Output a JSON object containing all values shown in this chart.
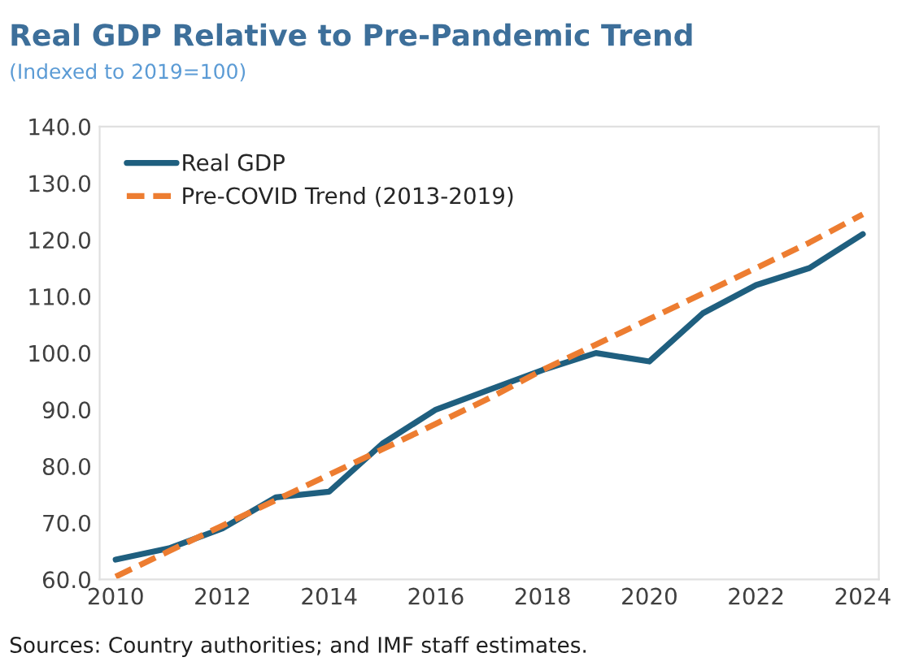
{
  "chart_data": {
    "type": "line",
    "title": "Real GDP Relative to Pre-Pandemic Trend",
    "subtitle": "(Indexed to 2019=100)",
    "x": [
      2010,
      2011,
      2012,
      2013,
      2014,
      2015,
      2016,
      2017,
      2018,
      2019,
      2020,
      2021,
      2022,
      2023,
      2024
    ],
    "series": [
      {
        "name": "Real GDP",
        "color": "#1f5f7f",
        "line_style": "solid",
        "values": [
          63.5,
          65.5,
          69,
          74.5,
          75.5,
          84,
          90,
          93.5,
          97,
          100,
          98.5,
          107,
          112,
          115,
          121
        ]
      },
      {
        "name": "Pre-COVID Trend (2013-2019)",
        "color": "#ed7d31",
        "line_style": "dashed",
        "values": [
          60.5,
          65,
          69.5,
          74,
          78.5,
          83,
          87.5,
          92,
          97,
          101.5,
          106,
          110.5,
          115,
          119.5,
          124.5
        ]
      }
    ],
    "xlim": [
      2009.7,
      2024.3
    ],
    "xticks": [
      2010,
      2012,
      2014,
      2016,
      2018,
      2020,
      2022,
      2024
    ],
    "ylim": [
      60,
      140
    ],
    "yticks": [
      {
        "value": 60,
        "label": "60.0"
      },
      {
        "value": 70,
        "label": "70.0"
      },
      {
        "value": 80,
        "label": "80.0"
      },
      {
        "value": 90,
        "label": "90.0"
      },
      {
        "value": 100,
        "label": "100.0"
      },
      {
        "value": 110,
        "label": "110.0"
      },
      {
        "value": 120,
        "label": "120.0"
      },
      {
        "value": 130,
        "label": "130.0"
      },
      {
        "value": 140,
        "label": "140.0"
      }
    ],
    "grid": false,
    "legend": "top left",
    "marker": "none",
    "annotations": [
      "Sources: Country authorities; and IMF staff estimates."
    ]
  }
}
